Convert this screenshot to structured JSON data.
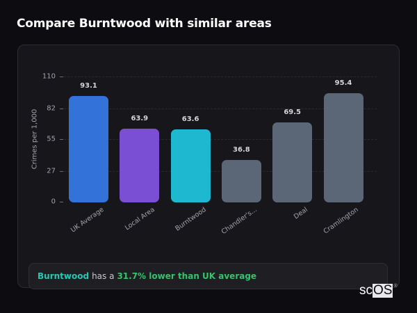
{
  "page": {
    "title": "Compare Burntwood with similar areas"
  },
  "chart_data": {
    "type": "bar",
    "title": "Compare Burntwood with similar areas",
    "xlabel": "",
    "ylabel": "Crimes per 1,000",
    "ylim": [
      0,
      110
    ],
    "yticks": [
      0,
      27,
      55,
      82,
      110
    ],
    "grid": true,
    "legend": null,
    "categories": [
      "UK Average",
      "Local Area",
      "Burntwood",
      "Chandler's...",
      "Deal",
      "Cramlington"
    ],
    "values": [
      93.1,
      63.9,
      63.6,
      36.8,
      69.5,
      95.4
    ],
    "value_labels": [
      "93.1",
      "63.9",
      "63.6",
      "36.8",
      "69.5",
      "95.4"
    ],
    "colors": [
      "#3373d9",
      "#7b4fd4",
      "#1fb8d1",
      "#5b6677",
      "#5b6677",
      "#5b6677"
    ]
  },
  "summary": {
    "area": "Burntwood",
    "connector": "has a",
    "stat": "31.7% lower than UK average"
  },
  "watermark": {
    "part1": "sc",
    "part2": "OS",
    "reg": "®"
  }
}
